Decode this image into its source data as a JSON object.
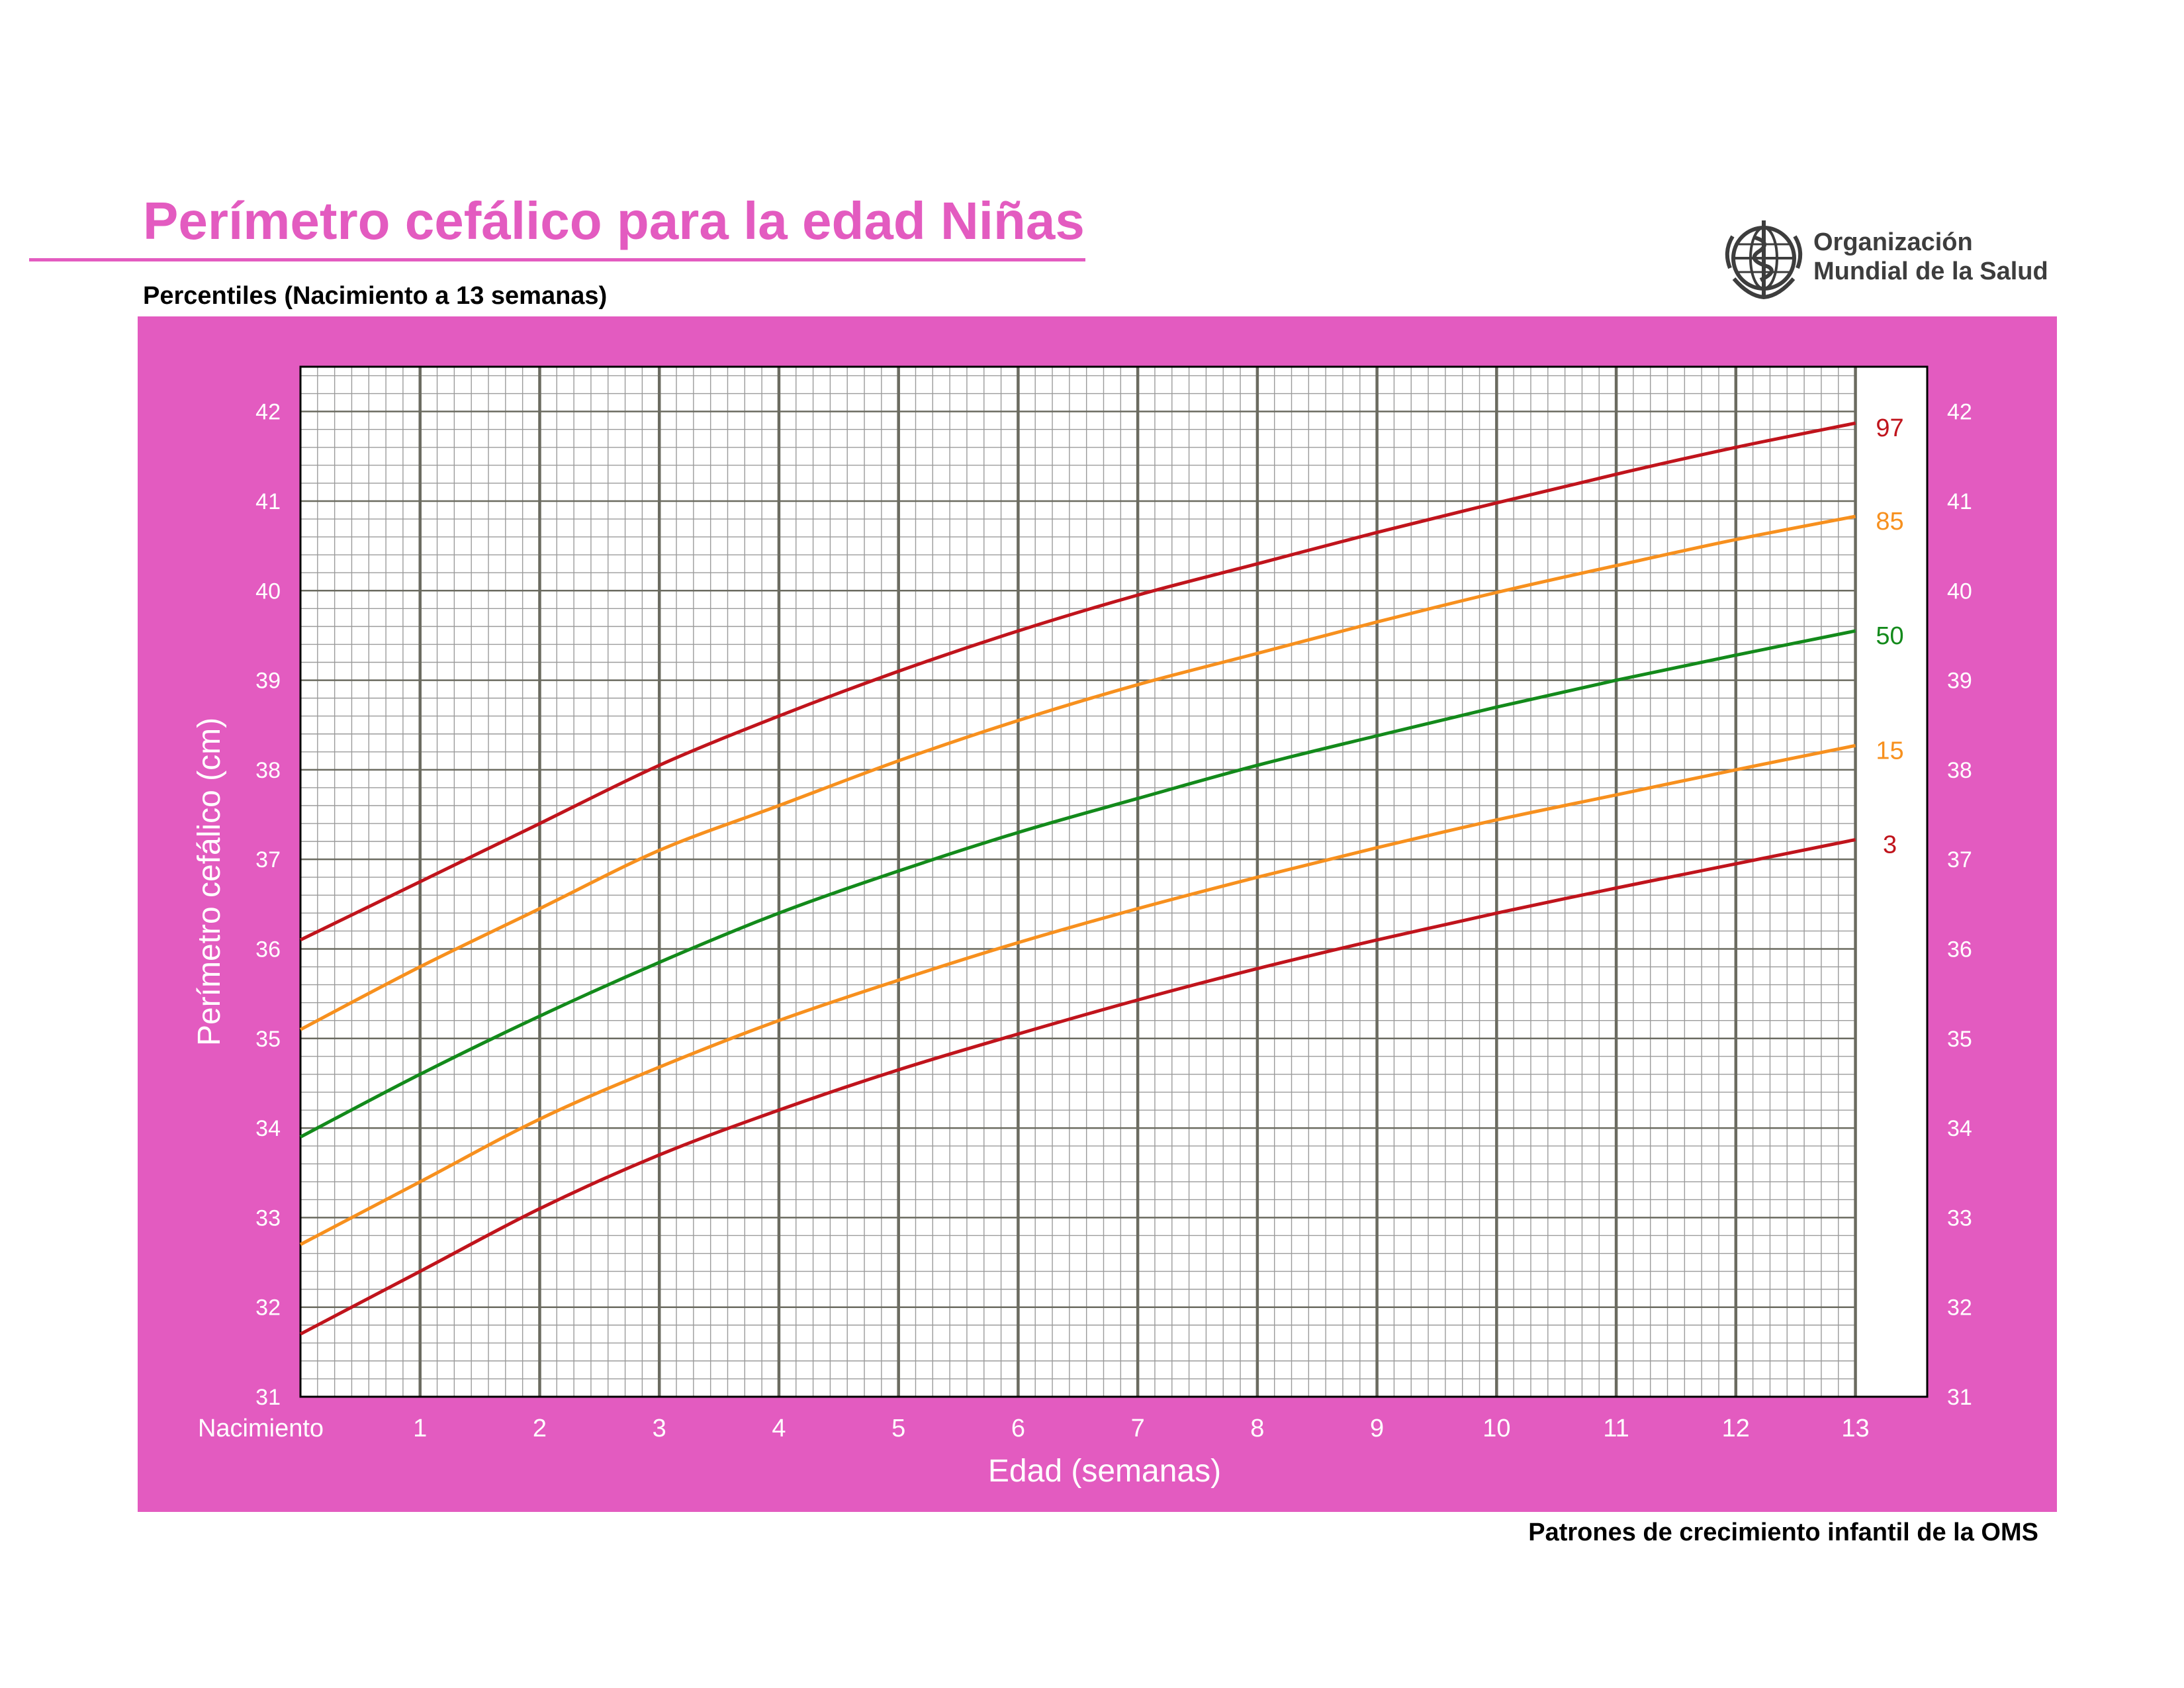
{
  "header": {
    "title": "Perímetro cefálico para la edad  Niñas",
    "subtitle": "Percentiles (Nacimiento a 13 semanas)",
    "logo_line1": "Organización",
    "logo_line2": "Mundial de la Salud",
    "title_color": "#e35bc0"
  },
  "footer": {
    "text": "Patrones de crecimiento infantil de la OMS"
  },
  "chart_data": {
    "type": "line",
    "title": "Perímetro cefálico para la edad  Niñas",
    "subtitle": "Percentiles (Nacimiento a 13 semanas)",
    "xlabel": "Edad (semanas)",
    "ylabel": "Perímetro cefálico (cm)",
    "xlim": [
      0,
      13.6
    ],
    "ylim": [
      31,
      42.5
    ],
    "x_ticks": [
      {
        "value": 0,
        "label": "Nacimiento"
      },
      {
        "value": 1,
        "label": "1"
      },
      {
        "value": 2,
        "label": "2"
      },
      {
        "value": 3,
        "label": "3"
      },
      {
        "value": 4,
        "label": "4"
      },
      {
        "value": 5,
        "label": "5"
      },
      {
        "value": 6,
        "label": "6"
      },
      {
        "value": 7,
        "label": "7"
      },
      {
        "value": 8,
        "label": "8"
      },
      {
        "value": 9,
        "label": "9"
      },
      {
        "value": 10,
        "label": "10"
      },
      {
        "value": 11,
        "label": "11"
      },
      {
        "value": 12,
        "label": "12"
      },
      {
        "value": 13,
        "label": "13"
      }
    ],
    "y_ticks": [
      31,
      32,
      33,
      34,
      35,
      36,
      37,
      38,
      39,
      40,
      41,
      42
    ],
    "grid": true,
    "panel_color": "#e35bc0",
    "x": [
      0,
      1,
      2,
      3,
      4,
      5,
      6,
      7,
      8,
      9,
      10,
      11,
      12,
      13
    ],
    "series": [
      {
        "name": "97",
        "color": "#c0141c",
        "values": [
          36.1,
          36.75,
          37.4,
          38.05,
          38.6,
          39.1,
          39.55,
          39.95,
          40.3,
          40.65,
          40.98,
          41.3,
          41.6,
          41.87
        ]
      },
      {
        "name": "85",
        "color": "#f7901e",
        "values": [
          35.1,
          35.8,
          36.45,
          37.1,
          37.6,
          38.1,
          38.55,
          38.95,
          39.3,
          39.65,
          39.98,
          40.28,
          40.57,
          40.83
        ]
      },
      {
        "name": "50",
        "color": "#138a1b",
        "values": [
          33.9,
          34.6,
          35.25,
          35.85,
          36.4,
          36.87,
          37.3,
          37.68,
          38.05,
          38.38,
          38.7,
          39.0,
          39.28,
          39.55
        ]
      },
      {
        "name": "15",
        "color": "#f7901e",
        "values": [
          32.7,
          33.4,
          34.1,
          34.68,
          35.2,
          35.65,
          36.07,
          36.45,
          36.8,
          37.13,
          37.44,
          37.72,
          38.0,
          38.27
        ]
      },
      {
        "name": "3",
        "color": "#c0141c",
        "values": [
          31.7,
          32.4,
          33.1,
          33.7,
          34.2,
          34.65,
          35.05,
          35.43,
          35.78,
          36.1,
          36.4,
          36.68,
          36.95,
          37.22
        ]
      }
    ]
  }
}
